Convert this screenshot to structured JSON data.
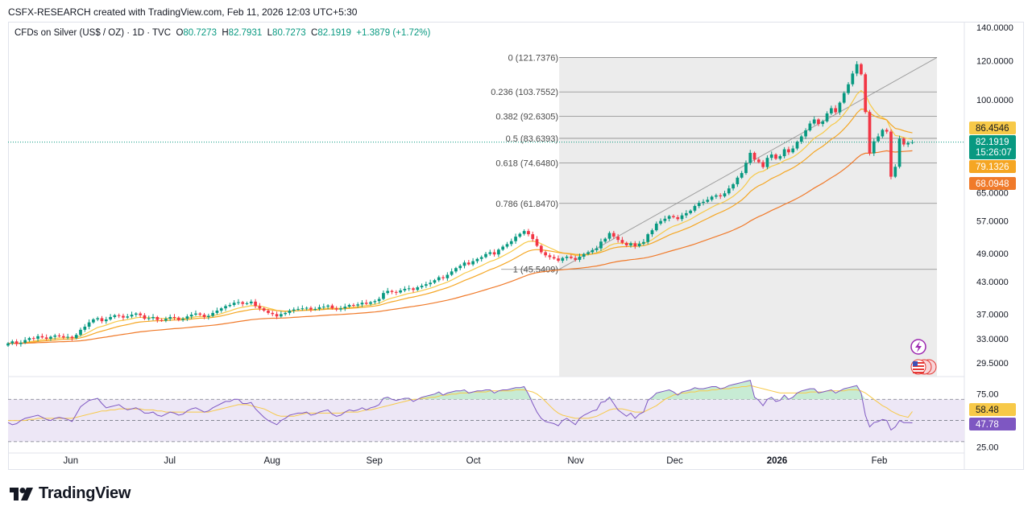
{
  "header": {
    "attribution": "CSFX-RESEARCH created with TradingView.com, Feb 11, 2026 12:03 UTC+5:30"
  },
  "legend": {
    "symbol": "CFDs on Silver (US$ / OZ) · 1D · TVC",
    "o_label": "O",
    "o_value": "80.7273",
    "h_label": "H",
    "h_value": "82.7931",
    "l_label": "L",
    "l_value": "80.7273",
    "c_label": "C",
    "c_value": "82.1919",
    "change": "+1.3879 (+1.72%)"
  },
  "brand": {
    "name": "TradingView"
  },
  "colors": {
    "up": "#089981",
    "down": "#f23645",
    "ema_fast": "#f7c948",
    "ema_mid": "#f5a623",
    "ema_slow": "#f07a2a",
    "fib_zone": "#e9e9e9",
    "rsi_line": "#7e57c2",
    "rsi_band": "#ede7f6",
    "rsi_ma": "#f7c948",
    "price_label": "#089981"
  },
  "chart_data": [
    {
      "type": "candlestick",
      "title": "CFDs on Silver (US$ / OZ) · 1D · TVC",
      "scale": "log",
      "ylim": [
        29.5,
        140
      ],
      "y_ticks": [
        "140.0000",
        "120.0000",
        "100.0000",
        "65.0000",
        "57.0000",
        "49.0000",
        "43.0000",
        "37.0000",
        "33.0000",
        "29.5000"
      ],
      "x_ticks": [
        "Jun",
        "Jul",
        "Aug",
        "Sep",
        "Oct",
        "Nov",
        "Dec",
        "2026",
        "Feb"
      ],
      "x_tick_dates": [
        "2025-06-01",
        "2025-07-01",
        "2025-08-01",
        "2025-09-01",
        "2025-10-01",
        "2025-11-01",
        "2025-12-01",
        "2026-01-01",
        "2026-02-01"
      ],
      "x_range": [
        "2025-05-13",
        "2026-02-27"
      ],
      "close_series": {
        "start": "2025-05-13",
        "interval": "1 calendar day (approx.)",
        "values": [
          32.3,
          32.6,
          32.2,
          32.4,
          32.8,
          33.1,
          33.0,
          33.4,
          33.2,
          33.0,
          33.3,
          33.5,
          33.4,
          33.2,
          33.3,
          33.1,
          33.6,
          34.4,
          34.9,
          35.6,
          36.1,
          36.3,
          35.8,
          36.1,
          36.5,
          36.8,
          36.7,
          36.4,
          36.6,
          36.9,
          37.1,
          36.8,
          36.2,
          36.3,
          36.5,
          36.0,
          35.9,
          36.2,
          36.5,
          36.4,
          36.0,
          36.2,
          36.6,
          36.9,
          37.1,
          36.9,
          36.5,
          36.7,
          37.2,
          37.6,
          38.0,
          38.4,
          38.6,
          39.0,
          39.1,
          38.8,
          38.9,
          39.2,
          38.4,
          38.0,
          37.6,
          37.2,
          37.0,
          36.6,
          37.0,
          37.2,
          37.6,
          37.8,
          37.9,
          38.0,
          38.1,
          37.8,
          37.9,
          38.2,
          38.3,
          38.5,
          38.0,
          37.8,
          38.0,
          38.3,
          38.6,
          38.5,
          38.7,
          39.0,
          38.8,
          39.1,
          39.3,
          39.7,
          40.8,
          41.2,
          41.0,
          40.9,
          41.3,
          41.6,
          41.7,
          41.4,
          41.9,
          42.2,
          42.5,
          42.8,
          43.3,
          43.9,
          43.7,
          44.4,
          45.1,
          45.8,
          46.3,
          47.0,
          46.6,
          47.3,
          47.8,
          48.2,
          48.9,
          49.3,
          48.8,
          49.9,
          50.6,
          51.2,
          51.9,
          53.0,
          53.7,
          54.4,
          53.6,
          52.4,
          50.8,
          49.3,
          48.6,
          48.2,
          47.9,
          47.4,
          48.0,
          48.3,
          48.0,
          47.6,
          48.3,
          48.9,
          49.3,
          49.8,
          50.2,
          51.8,
          52.5,
          53.9,
          53.0,
          52.2,
          51.5,
          50.9,
          51.4,
          50.7,
          51.3,
          51.7,
          53.6,
          54.6,
          56.3,
          57.0,
          57.6,
          58.3,
          58.0,
          57.5,
          58.5,
          59.1,
          59.8,
          61.1,
          62.0,
          62.3,
          62.9,
          63.8,
          64.2,
          63.9,
          64.8,
          66.3,
          67.6,
          69.7,
          71.2,
          74.6,
          78.2,
          75.8,
          74.9,
          73.2,
          76.4,
          77.6,
          76.1,
          77.0,
          79.5,
          78.4,
          79.8,
          82.3,
          84.4,
          86.8,
          89.6,
          91.3,
          89.4,
          90.5,
          93.9,
          96.2,
          94.4,
          98.7,
          103.2,
          107.5,
          113.0,
          118.0,
          112.6,
          94.5,
          78.0,
          82.5,
          84.4,
          87.0,
          86.3,
          70.0,
          73.3,
          83.5,
          81.3,
          81.9,
          82.19
        ]
      },
      "last_candle": {
        "date": "2026-02-11",
        "open": 80.7273,
        "high": 82.7931,
        "low": 80.7273,
        "close": 82.1919
      },
      "period_extremes": {
        "low_approx": 30.8,
        "high": 121.7376,
        "recent_low_approx": 63.9
      },
      "fibonacci": {
        "anchor_high": 121.7376,
        "anchor_low": 45.5409,
        "levels": [
          {
            "ratio": "0",
            "label": "0 (121.7376)",
            "value": 121.7376
          },
          {
            "ratio": "0.236",
            "label": "0.236 (103.7552)",
            "value": 103.7552
          },
          {
            "ratio": "0.382",
            "label": "0.382 (92.6305)",
            "value": 92.6305
          },
          {
            "ratio": "0.5",
            "label": "0.5 (83.6393)",
            "value": 83.6393
          },
          {
            "ratio": "0.618",
            "label": "0.618 (74.6480)",
            "value": 74.648
          },
          {
            "ratio": "0.786",
            "label": "0.786 (61.8470)",
            "value": 61.847
          },
          {
            "ratio": "1",
            "label": "1 (45.5409)",
            "value": 45.5409
          }
        ]
      },
      "moving_averages": [
        {
          "style": "ema_fast",
          "last": 86.4546,
          "label": "86.4546"
        },
        {
          "style": "ema_mid",
          "last": 79.1326,
          "label": "79.1326"
        },
        {
          "style": "ema_slow",
          "last": 68.0948,
          "label": "68.0948"
        }
      ],
      "price_label": {
        "value": "82.1919",
        "countdown": "15:26:07"
      }
    },
    {
      "type": "line",
      "title": "",
      "ylim": [
        20,
        90
      ],
      "y_ticks": [
        "75.00",
        "25.00"
      ],
      "bands": [
        70,
        50,
        30
      ],
      "rsi_label": "47.78",
      "rsi_ma_label": "58.48",
      "rsi_values": [
        48,
        46,
        47,
        50,
        52,
        53,
        54,
        55,
        53,
        51,
        50,
        52,
        53,
        52,
        51,
        49,
        56,
        63,
        66,
        69,
        70,
        71,
        66,
        62,
        63,
        64,
        65,
        62,
        60,
        61,
        62,
        60,
        57,
        57,
        58,
        55,
        54,
        56,
        58,
        57,
        55,
        56,
        59,
        61,
        62,
        60,
        58,
        59,
        62,
        64,
        66,
        68,
        68,
        70,
        70,
        66,
        66,
        67,
        61,
        57,
        53,
        50,
        48,
        46,
        50,
        52,
        55,
        56,
        57,
        57,
        58,
        55,
        56,
        58,
        59,
        60,
        56,
        54,
        55,
        58,
        60,
        59,
        60,
        62,
        60,
        62,
        63,
        65,
        71,
        72,
        70,
        69,
        70,
        71,
        71,
        68,
        70,
        72,
        73,
        74,
        75,
        77,
        74,
        76,
        77,
        78,
        78,
        79,
        76,
        77,
        78,
        78,
        79,
        79,
        76,
        78,
        79,
        79,
        80,
        81,
        81,
        82,
        75,
        66,
        58,
        52,
        49,
        48,
        47,
        45,
        50,
        52,
        49,
        46,
        52,
        55,
        57,
        59,
        60,
        67,
        68,
        72,
        66,
        60,
        57,
        54,
        57,
        52,
        56,
        58,
        69,
        72,
        76,
        77,
        78,
        79,
        77,
        74,
        77,
        78,
        79,
        81,
        80,
        80,
        81,
        82,
        82,
        80,
        81,
        83,
        84,
        85,
        86,
        87,
        88,
        72,
        69,
        64,
        70,
        72,
        68,
        69,
        74,
        70,
        72,
        76,
        78,
        79,
        80,
        80,
        76,
        77,
        78,
        79,
        76,
        78,
        80,
        81,
        82,
        83,
        76,
        55,
        44,
        48,
        49,
        51,
        50,
        41,
        44,
        50,
        48,
        48,
        47.78
      ],
      "rsi_ma_values": [
        50,
        50,
        50,
        50,
        50,
        51,
        51,
        52,
        52,
        52,
        52,
        52,
        52,
        52,
        52,
        52,
        53,
        54,
        55,
        56,
        57,
        58,
        59,
        59,
        60,
        60,
        61,
        61,
        61,
        61,
        61,
        61,
        60,
        60,
        60,
        59,
        59,
        58,
        58,
        58,
        58,
        58,
        58,
        58,
        58,
        58,
        58,
        58,
        59,
        60,
        61,
        62,
        63,
        64,
        65,
        65,
        65,
        64,
        63,
        62,
        61,
        59,
        57,
        55,
        54,
        54,
        54,
        54,
        55,
        56,
        57,
        57,
        57,
        57,
        57,
        57,
        57,
        57,
        57,
        58,
        58,
        58,
        58,
        59,
        60,
        60,
        61,
        62,
        63,
        64,
        65,
        66,
        67,
        68,
        69,
        70,
        70,
        71,
        71,
        72,
        72,
        73,
        74,
        74,
        75,
        75,
        76,
        76,
        76,
        77,
        77,
        77,
        77,
        78,
        78,
        78,
        78,
        78,
        78,
        79,
        79,
        79,
        78,
        77,
        75,
        72,
        68,
        64,
        60,
        57,
        55,
        54,
        53,
        52,
        52,
        52,
        52,
        53,
        54,
        56,
        58,
        60,
        61,
        61,
        61,
        60,
        59,
        58,
        58,
        58,
        60,
        62,
        64,
        67,
        70,
        72,
        74,
        75,
        76,
        76,
        77,
        77,
        78,
        78,
        78,
        79,
        79,
        80,
        80,
        80,
        81,
        81,
        82,
        82,
        83,
        82,
        81,
        80,
        79,
        78,
        77,
        76,
        76,
        76,
        76,
        76,
        76,
        76,
        77,
        77,
        77,
        77,
        78,
        78,
        78,
        78,
        78,
        79,
        79,
        79,
        78,
        76,
        73,
        70,
        67,
        64,
        62,
        59,
        57,
        55,
        54,
        53,
        58.48
      ]
    }
  ]
}
